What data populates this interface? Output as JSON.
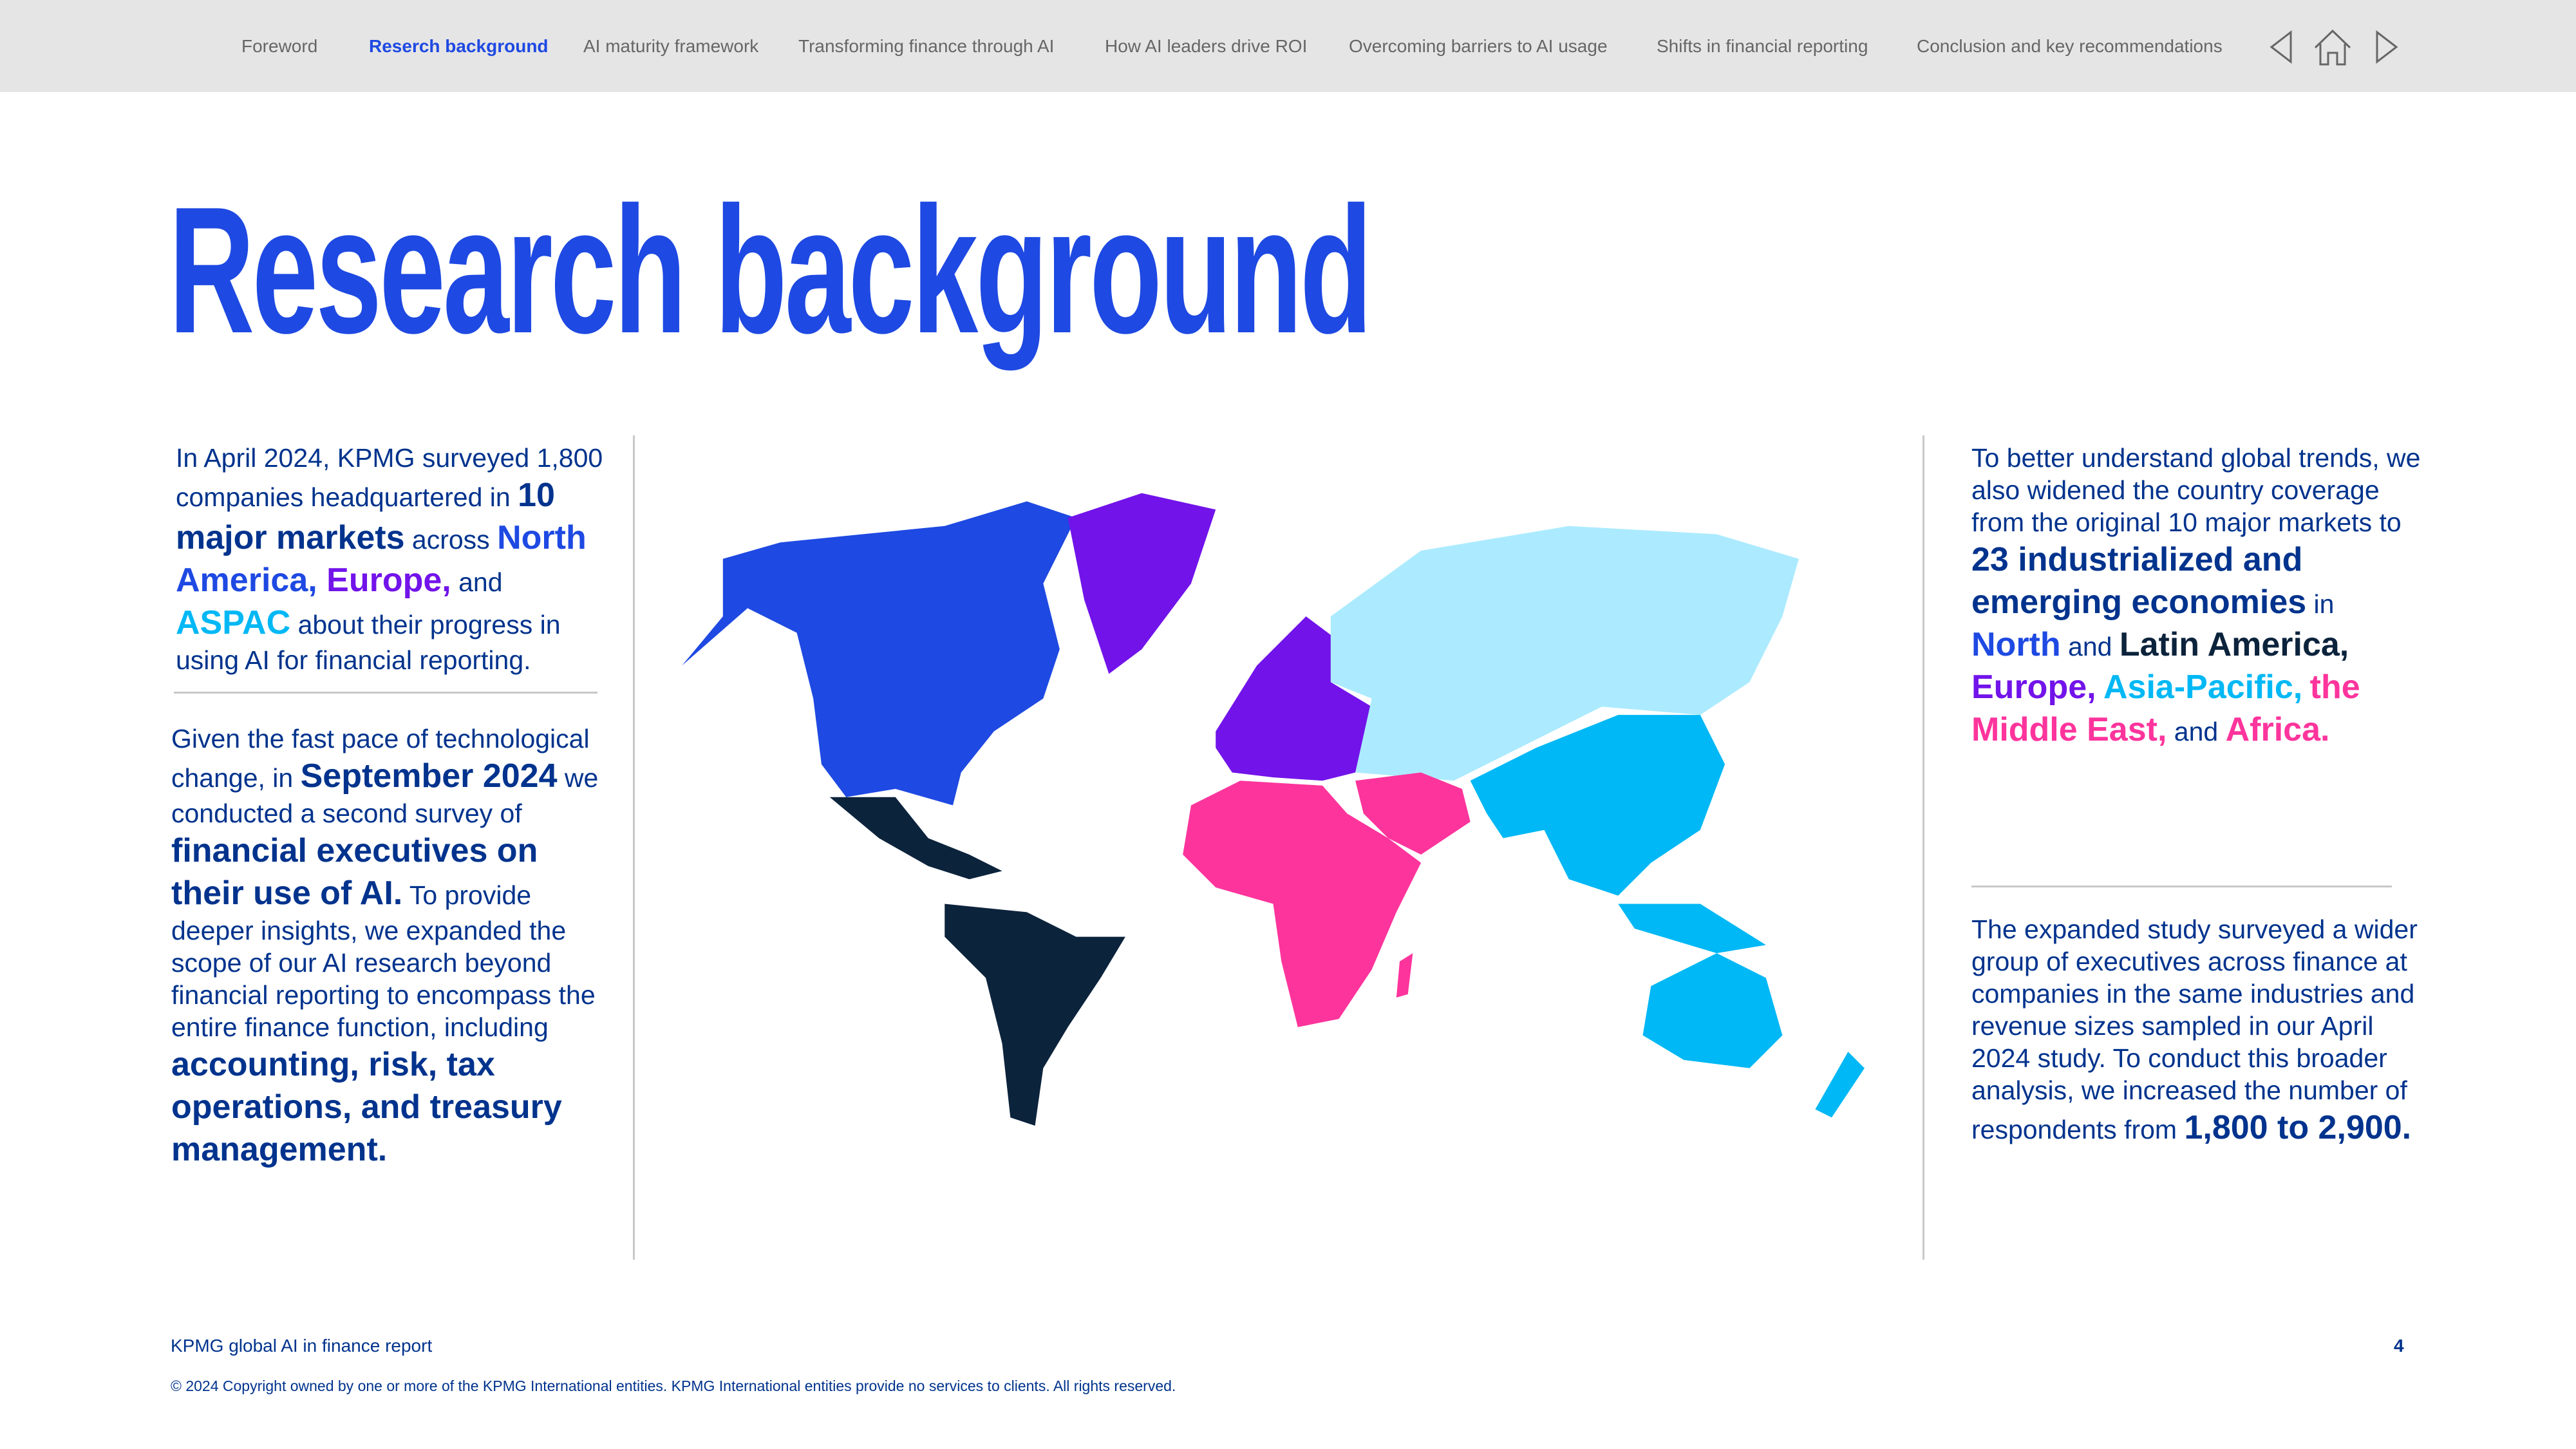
{
  "nav": {
    "items": [
      "Foreword",
      "Reserch background",
      "AI maturity framework",
      "Transforming finance through AI",
      "How AI leaders drive ROI",
      "Overcoming barriers to AI usage",
      "Shifts in financial reporting",
      "Conclusion and key recommendations"
    ],
    "active_index": 1,
    "icons": [
      "previous-arrow-icon",
      "home-icon",
      "next-arrow-icon"
    ]
  },
  "title": "Research background",
  "left": {
    "p1": [
      "In April 2024, KPMG surveyed 1,800 companies headquartered in ",
      "10 major markets",
      " across ",
      "North America, ",
      "Europe,",
      " and ",
      "ASPAC",
      " about their progress in using AI for financial reporting."
    ],
    "p2": [
      "Given the fast pace of technological change, in ",
      "September 2024",
      " we conducted a second survey of ",
      "financial executives on their use of AI.",
      " To provide deeper insights, we expanded the scope of our AI research beyond financial reporting to encompass the entire finance function, including ",
      "accounting, risk, tax operations, and treasury management."
    ]
  },
  "right": {
    "p1": [
      "To better understand global trends, we also widened the country coverage from the original 10 major markets to ",
      "23 industrialized and emerging economies",
      " in ",
      "North",
      " and ",
      "Latin America,",
      "Europe,",
      "Asia-Pacific,",
      "the Middle East,",
      " and ",
      "Africa."
    ],
    "p2": [
      "The expanded study surveyed a wider group of executives across finance at companies in the same industries and revenue sizes sampled in our April 2024 study. To conduct this broader analysis, we increased the number of respondents from ",
      "1,800 to 2,900."
    ]
  },
  "colors": {
    "north_america": "#1e49e2",
    "europe": "#7213ea",
    "asia_pacific": "#00b8f5",
    "middle_east_africa": "#fd349c",
    "latin_america": "#0c233c",
    "other": "#acebff",
    "navy": "#00338d"
  },
  "footer": {
    "report": "KPMG global AI in finance report",
    "page": "4",
    "copyright": "© 2024 Copyright owned by one or more of the KPMG International entities. KPMG International entities provide no services to clients. All rights reserved."
  }
}
